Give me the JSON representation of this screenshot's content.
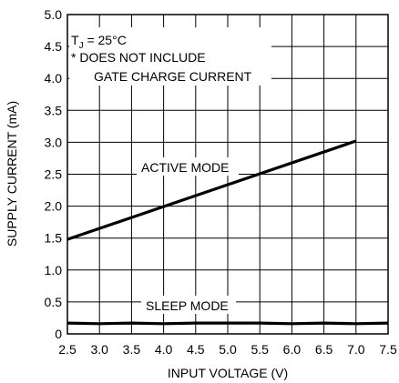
{
  "chart_data": {
    "type": "line",
    "xlabel": "INPUT VOLTAGE (V)",
    "ylabel": "SUPPLY CURRENT (mA)",
    "xlim": [
      2.5,
      7.5
    ],
    "ylim": [
      0,
      5.0
    ],
    "xticks": [
      "2.5",
      "3.0",
      "3.5",
      "4.0",
      "4.5",
      "5.0",
      "5.5",
      "6.0",
      "6.5",
      "7.0",
      "7.5"
    ],
    "yticks": [
      "0",
      "0.5",
      "1.0",
      "1.5",
      "2.0",
      "2.5",
      "3.0",
      "3.5",
      "4.0",
      "4.5",
      "5.0"
    ],
    "grid": true,
    "conditions": {
      "tj_main": "T",
      "tj_sub": "J",
      "tj_rest": " = 25°C",
      "note_line1": "* DOES NOT INCLUDE",
      "note_line2": "GATE CHARGE CURRENT"
    },
    "series": [
      {
        "name": "ACTIVE MODE",
        "x": [
          2.5,
          7.0
        ],
        "y": [
          1.48,
          3.02
        ]
      },
      {
        "name": "SLEEP MODE",
        "x": [
          2.5,
          3.0,
          3.5,
          4.0,
          4.5,
          5.0,
          5.5,
          6.0,
          6.5,
          7.0,
          7.5
        ],
        "y": [
          0.17,
          0.16,
          0.17,
          0.16,
          0.17,
          0.17,
          0.17,
          0.16,
          0.17,
          0.16,
          0.17
        ]
      }
    ]
  }
}
